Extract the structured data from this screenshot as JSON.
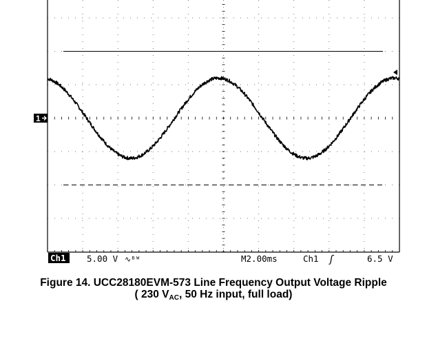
{
  "chart_data": {
    "type": "line",
    "title": "",
    "xlabel": "",
    "ylabel": "",
    "grid": true,
    "grid_divisions": {
      "x": 10,
      "y": 8
    },
    "xlim_div": [
      0,
      10
    ],
    "ylim_div": [
      -4,
      4
    ],
    "ground_marker_label": "1",
    "series": [
      {
        "name": "",
        "kind": "sinusoid",
        "frequency_hz": 100,
        "time_per_div_ms": 2.0,
        "amplitude_div": 1.2,
        "offset_div": 0.0,
        "phase_deg_at_left": 100,
        "noise_div": 0.05
      }
    ],
    "reference_lines": [
      {
        "style": "solid",
        "level_div": 2.0
      },
      {
        "style": "dashed",
        "level_div": -2.0
      }
    ],
    "trigger_marker": {
      "side": "right",
      "level_div": 1.3
    }
  },
  "readout": {
    "channel_label": "Ch1",
    "volts_per_div": "5.00 V",
    "coupling_symbol": "∿ᴮᵂ",
    "timebase": "M2.00ms",
    "trigger_source": "Ch1",
    "trigger_slope_symbol": "ʃ",
    "trigger_level": "6.5 V"
  },
  "caption": {
    "line1": "Figure 14. UCC28180EVM-573 Line Frequency Output Voltage Ripple",
    "line2_prefix": "( 230 V",
    "line2_sub": "AC",
    "line2_suffix": ", 50 Hz input, full load)"
  },
  "colors": {
    "trace": "#000000",
    "grid": "#000000",
    "background": "#ffffff"
  }
}
